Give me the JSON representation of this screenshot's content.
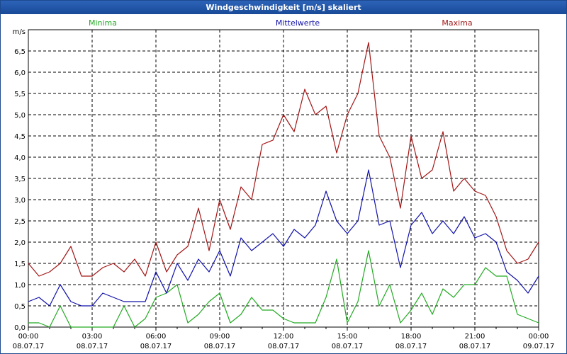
{
  "window": {
    "title": "Windgeschwindigkeit [m/s] skaliert"
  },
  "chart_data": {
    "type": "line",
    "title": "Windgeschwindigkeit [m/s] skaliert",
    "ylabel": "m/s",
    "ylim": [
      0,
      7
    ],
    "yticks": [
      "0,0",
      "0,5",
      "1,0",
      "1,5",
      "2,0",
      "2,5",
      "3,0",
      "3,5",
      "4,0",
      "4,5",
      "5,0",
      "5,5",
      "6,0",
      "6,5"
    ],
    "xticks": [
      {
        "time": "00:00",
        "date": "08.07.17"
      },
      {
        "time": "03:00",
        "date": "08.07.17"
      },
      {
        "time": "06:00",
        "date": "08.07.17"
      },
      {
        "time": "09:00",
        "date": "08.07.17"
      },
      {
        "time": "12:00",
        "date": "08.07.17"
      },
      {
        "time": "15:00",
        "date": "08.07.17"
      },
      {
        "time": "18:00",
        "date": "08.07.17"
      },
      {
        "time": "21:00",
        "date": "08.07.17"
      },
      {
        "time": "00:00",
        "date": "09.07.17"
      }
    ],
    "grid": true,
    "series": [
      {
        "name": "Minima",
        "color": "#22aa22",
        "x": [
          0,
          0.5,
          1,
          1.5,
          2,
          2.5,
          3,
          3.5,
          4,
          4.5,
          5,
          5.5,
          6,
          6.5,
          7,
          7.5,
          8,
          8.5,
          9,
          9.5,
          10,
          10.5,
          11,
          11.5,
          12,
          12.5,
          13,
          13.5,
          14,
          14.5,
          15,
          15.5,
          16,
          16.5,
          17,
          17.5,
          18,
          18.5,
          19,
          19.5,
          20,
          20.5,
          21,
          21.5,
          22,
          22.5,
          23,
          23.5,
          24
        ],
        "values": [
          0.1,
          0.1,
          0.0,
          0.5,
          0.0,
          0.0,
          0.0,
          0.0,
          0.0,
          0.5,
          0.0,
          0.2,
          0.7,
          0.8,
          1.0,
          0.1,
          0.3,
          0.6,
          0.8,
          0.1,
          0.3,
          0.7,
          0.4,
          0.4,
          0.2,
          0.1,
          0.1,
          0.1,
          0.7,
          1.6,
          0.1,
          0.6,
          1.8,
          0.5,
          1.0,
          0.1,
          0.4,
          0.8,
          0.3,
          0.9,
          0.7,
          1.0,
          1.0,
          1.4,
          1.2,
          1.2,
          0.3,
          0.2,
          0.1
        ]
      },
      {
        "name": "Mittelwerte",
        "color": "#1111aa",
        "x": [
          0,
          0.5,
          1,
          1.5,
          2,
          2.5,
          3,
          3.5,
          4,
          4.5,
          5,
          5.5,
          6,
          6.5,
          7,
          7.5,
          8,
          8.5,
          9,
          9.5,
          10,
          10.5,
          11,
          11.5,
          12,
          12.5,
          13,
          13.5,
          14,
          14.5,
          15,
          15.5,
          16,
          16.5,
          17,
          17.5,
          18,
          18.5,
          19,
          19.5,
          20,
          20.5,
          21,
          21.5,
          22,
          22.5,
          23,
          23.5,
          24
        ],
        "values": [
          0.6,
          0.7,
          0.5,
          1.0,
          0.6,
          0.5,
          0.5,
          0.8,
          0.7,
          0.6,
          0.6,
          0.6,
          1.3,
          0.8,
          1.5,
          1.1,
          1.6,
          1.3,
          1.8,
          1.2,
          2.1,
          1.8,
          2.0,
          2.2,
          1.9,
          2.3,
          2.1,
          2.4,
          3.2,
          2.5,
          2.2,
          2.5,
          3.7,
          2.4,
          2.5,
          1.4,
          2.4,
          2.7,
          2.2,
          2.5,
          2.2,
          2.6,
          2.1,
          2.2,
          2.0,
          1.3,
          1.1,
          0.8,
          1.2
        ]
      },
      {
        "name": "Maxima",
        "color": "#a31515",
        "x": [
          0,
          0.5,
          1,
          1.5,
          2,
          2.5,
          3,
          3.5,
          4,
          4.5,
          5,
          5.5,
          6,
          6.5,
          7,
          7.5,
          8,
          8.5,
          9,
          9.5,
          10,
          10.5,
          11,
          11.5,
          12,
          12.5,
          13,
          13.5,
          14,
          14.5,
          15,
          15.5,
          16,
          16.5,
          17,
          17.5,
          18,
          18.5,
          19,
          19.5,
          20,
          20.5,
          21,
          21.5,
          22,
          22.5,
          23,
          23.5,
          24
        ],
        "values": [
          1.5,
          1.2,
          1.3,
          1.5,
          1.9,
          1.2,
          1.2,
          1.4,
          1.5,
          1.3,
          1.6,
          1.2,
          2.0,
          1.3,
          1.7,
          1.9,
          2.8,
          1.8,
          3.0,
          2.3,
          3.3,
          3.0,
          4.3,
          4.4,
          5.0,
          4.6,
          5.6,
          5.0,
          5.2,
          4.1,
          5.0,
          5.5,
          6.7,
          4.5,
          4.0,
          2.8,
          4.5,
          3.5,
          3.7,
          4.6,
          3.2,
          3.5,
          3.2,
          3.1,
          2.6,
          1.8,
          1.5,
          1.6,
          2.0
        ]
      }
    ]
  }
}
